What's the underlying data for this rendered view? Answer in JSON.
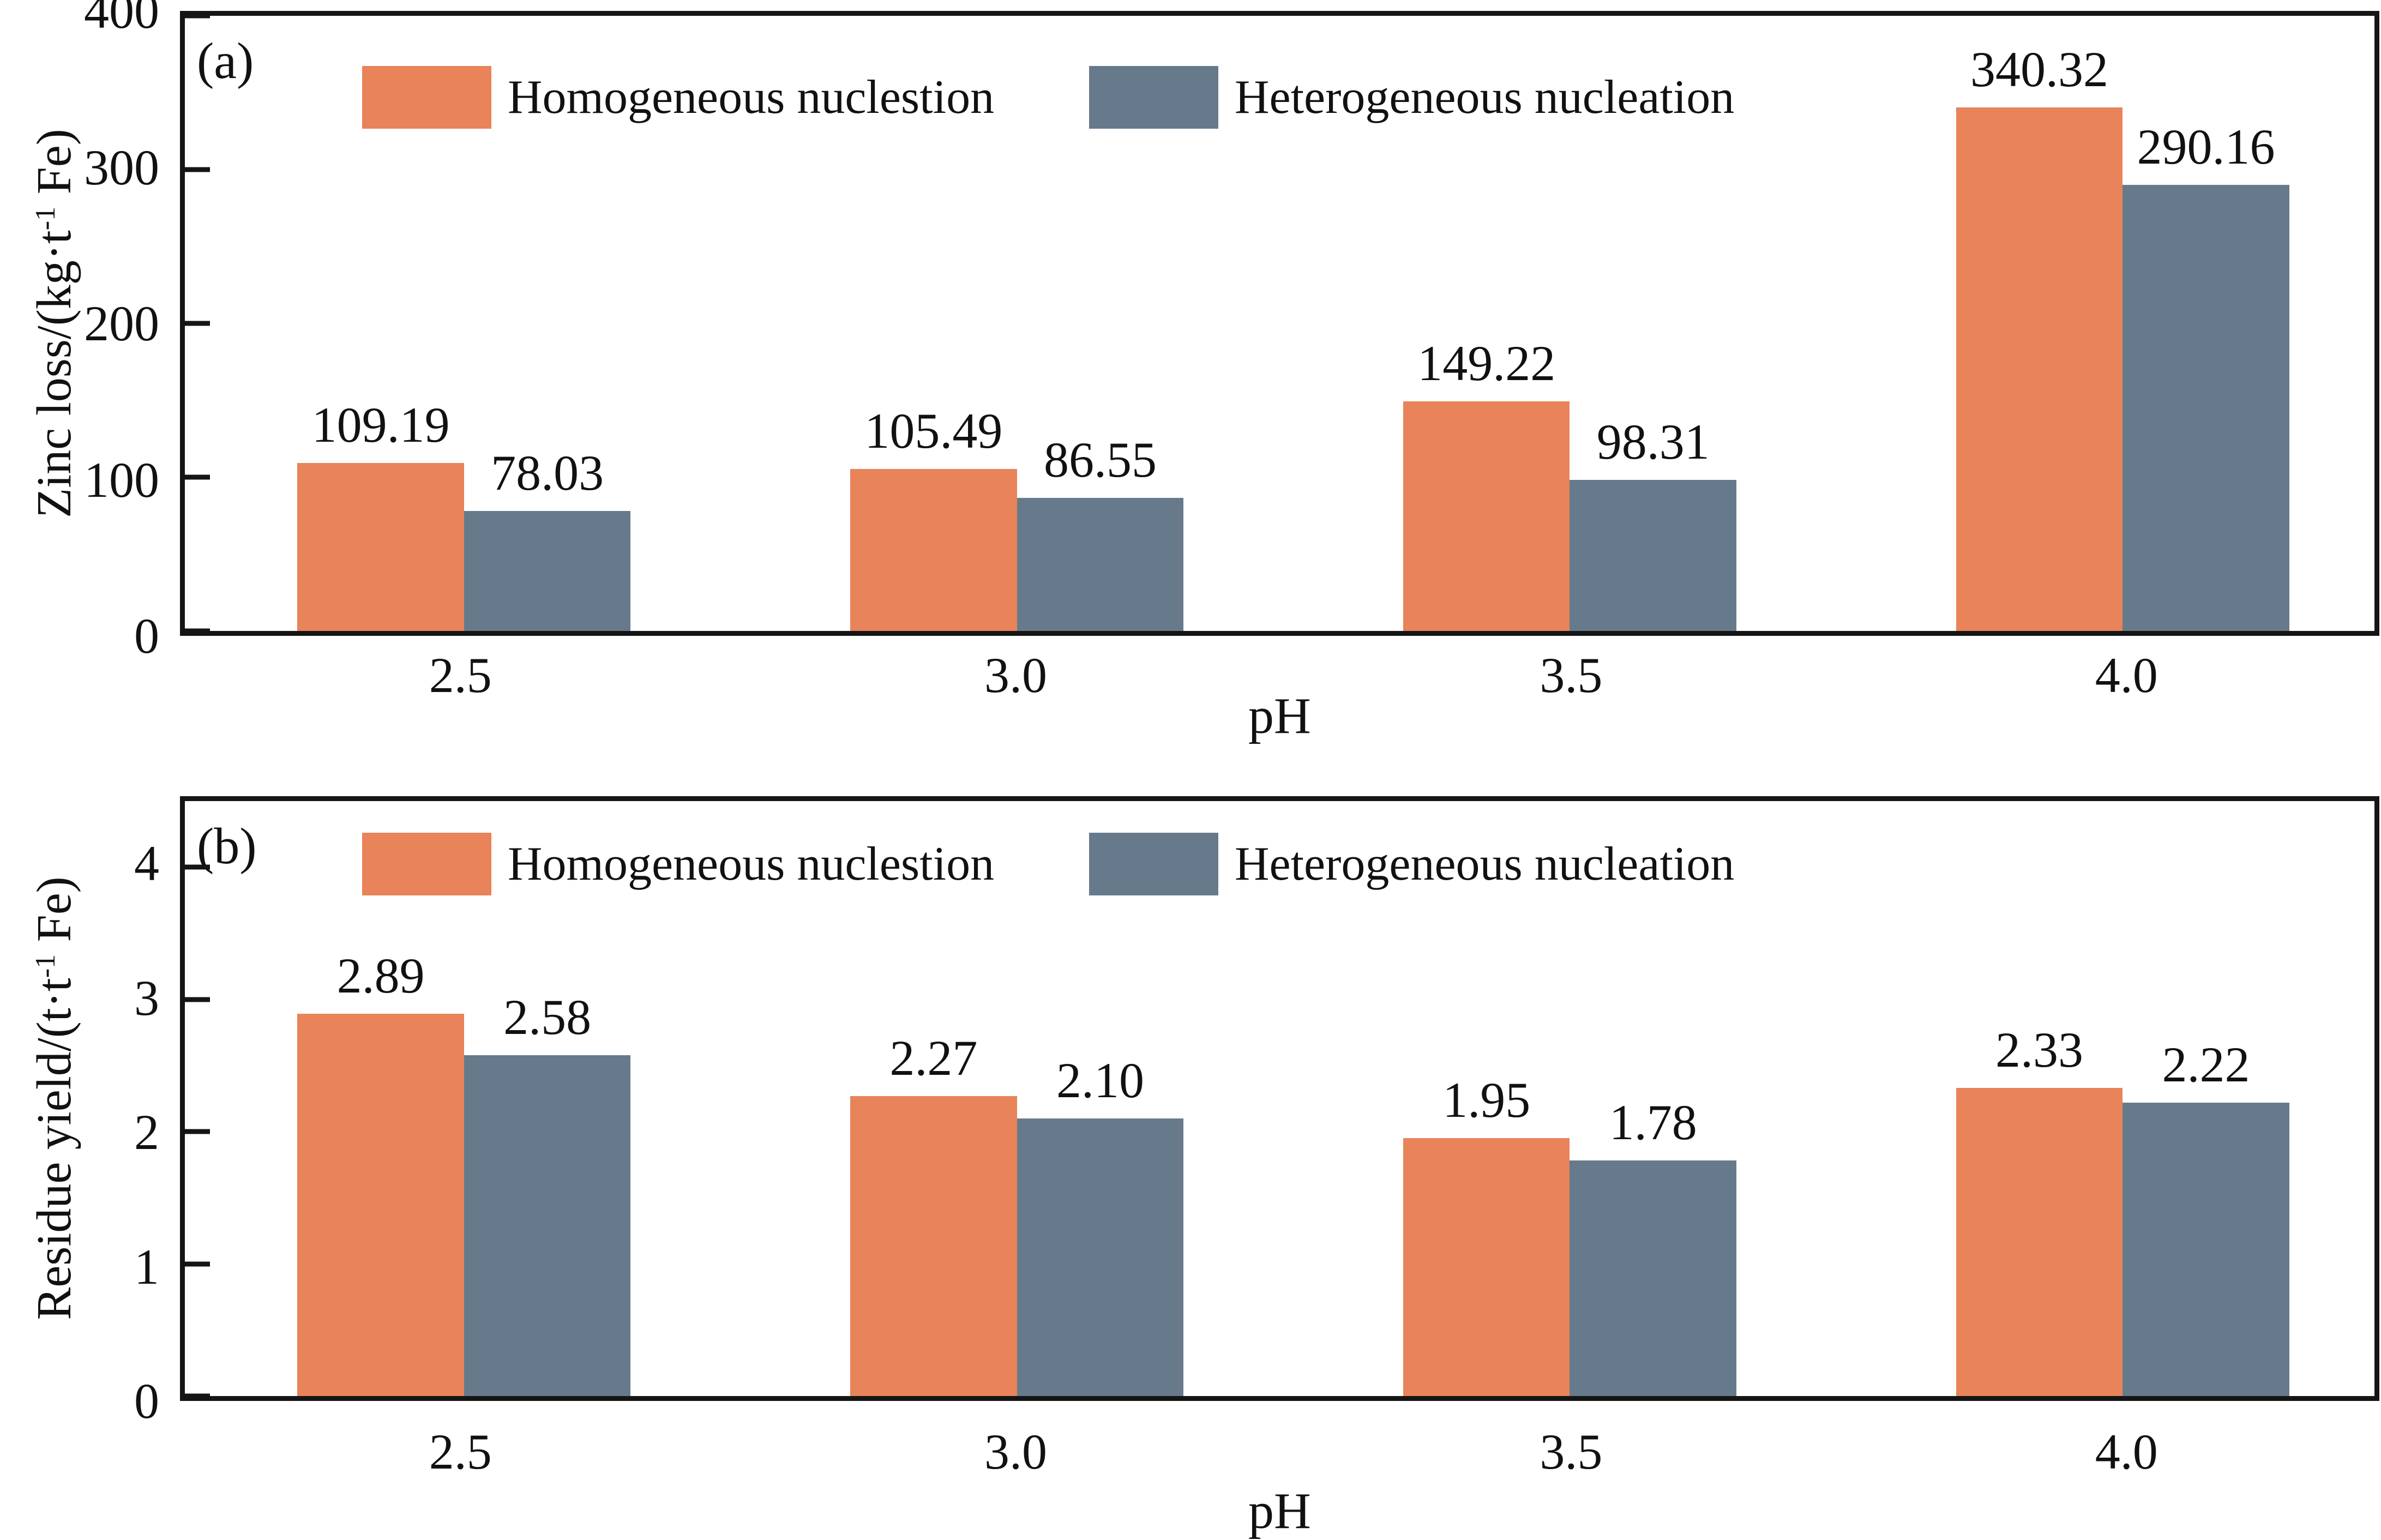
{
  "chart_data": [
    {
      "type": "bar",
      "panel_label": "(a)",
      "xlabel": "pH",
      "ylabel": "Zinc loss/(kg·t⁻¹ Fe)",
      "ylabel_parts": {
        "pre": "Zinc loss/(kg·t",
        "sup": "-1",
        "post": " Fe)"
      },
      "categories": [
        "2.5",
        "3.0",
        "3.5",
        "4.0"
      ],
      "series": [
        {
          "name": "Homogeneous nuclestion",
          "color": "#E8835A",
          "values": [
            109.19,
            105.49,
            149.22,
            340.32
          ]
        },
        {
          "name": "Heterogeneous nucleation",
          "color": "#677A8C",
          "values": [
            78.03,
            86.55,
            98.31,
            290.16
          ]
        }
      ],
      "yticks": [
        0,
        100,
        200,
        300,
        400
      ],
      "ylim": [
        0,
        400
      ],
      "grid": false,
      "legend_position": "top-inside",
      "bar_value_labels": true
    },
    {
      "type": "bar",
      "panel_label": "(b)",
      "xlabel": "pH",
      "ylabel": "Residue yield/(t·t⁻¹ Fe)",
      "ylabel_parts": {
        "pre": "Residue yield/(t·t",
        "sup": "-1",
        "post": " Fe)"
      },
      "categories": [
        "2.5",
        "3.0",
        "3.5",
        "4.0"
      ],
      "series": [
        {
          "name": "Homogeneous nuclestion",
          "color": "#E8835A",
          "values": [
            2.89,
            2.27,
            1.95,
            2.33
          ]
        },
        {
          "name": "Heterogeneous nucleation",
          "color": "#677A8C",
          "values": [
            2.58,
            2.1,
            1.78,
            2.22
          ]
        }
      ],
      "yticks": [
        0,
        1,
        2,
        3,
        4
      ],
      "ylim": [
        0,
        4.5
      ],
      "grid": false,
      "legend_position": "top-inside",
      "bar_value_labels": true
    }
  ]
}
